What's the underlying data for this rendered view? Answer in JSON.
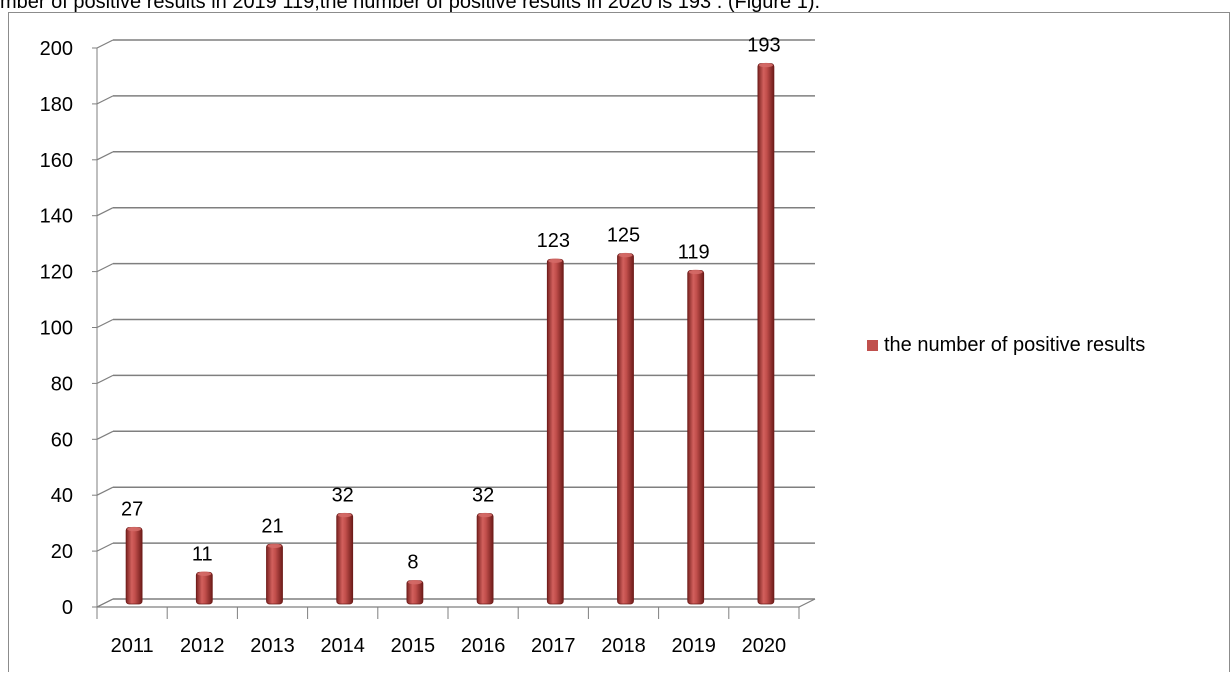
{
  "clipped_caption": "mber of positive results in 2019  119,the number of positive results in 2020  is 193 . (Figure 1).",
  "chart_data": {
    "type": "bar",
    "categories": [
      "2011",
      "2012",
      "2013",
      "2014",
      "2015",
      "2016",
      "2017",
      "2018",
      "2019",
      "2020"
    ],
    "series": [
      {
        "name": "the number of positive results",
        "values": [
          27,
          11,
          21,
          32,
          8,
          32,
          123,
          125,
          119,
          193
        ]
      }
    ],
    "ylim": [
      0,
      200
    ],
    "yticks": [
      0,
      20,
      40,
      60,
      80,
      100,
      120,
      140,
      160,
      180,
      200
    ],
    "grid": true,
    "legend": "right",
    "colors": {
      "bar": "#c0504d",
      "bar_dark": "#8b2623",
      "grid": "#7f7f7f"
    }
  }
}
